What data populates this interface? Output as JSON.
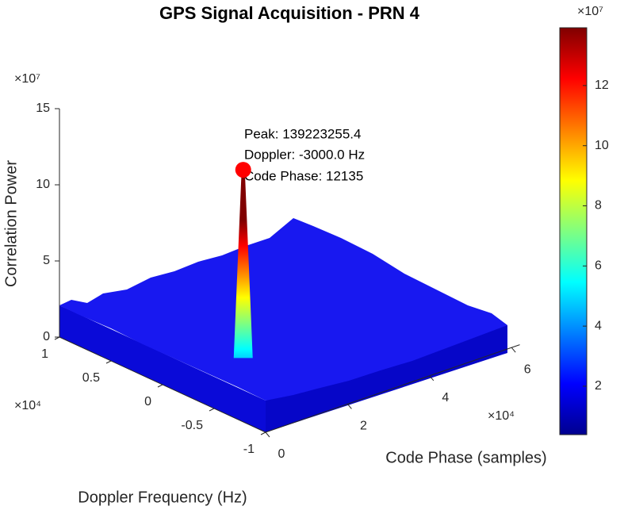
{
  "chart_data": {
    "type": "surface",
    "title": "GPS Signal Acquisition - PRN 4",
    "xlabel": "Code Phase (samples)",
    "ylabel": "Doppler Frequency (Hz)",
    "zlabel": "Correlation Power",
    "colormap": "jet",
    "xlim": [
      0,
      62000
    ],
    "ylim": [
      -10000,
      10000
    ],
    "zlim": [
      0,
      150000000
    ],
    "clim": [
      3900000,
      139223255.4
    ],
    "xticks": [
      {
        "value": 0,
        "label": "0"
      },
      {
        "value": 20000,
        "label": "2"
      },
      {
        "value": 40000,
        "label": "4"
      },
      {
        "value": 60000,
        "label": "6"
      }
    ],
    "yticks": [
      {
        "value": -10000,
        "label": "-1"
      },
      {
        "value": -5000,
        "label": "-0.5"
      },
      {
        "value": 0,
        "label": "0"
      },
      {
        "value": 5000,
        "label": "0.5"
      },
      {
        "value": 10000,
        "label": "1"
      }
    ],
    "zticks": [
      {
        "value": 0,
        "label": "0"
      },
      {
        "value": 50000000,
        "label": "5"
      },
      {
        "value": 100000000,
        "label": "10"
      },
      {
        "value": 150000000,
        "label": "15"
      }
    ],
    "cticks": [
      {
        "value": 20000000,
        "label": "2"
      },
      {
        "value": 40000000,
        "label": "4"
      },
      {
        "value": 60000000,
        "label": "6"
      },
      {
        "value": 80000000,
        "label": "8"
      },
      {
        "value": 100000000,
        "label": "10"
      },
      {
        "value": 120000000,
        "label": "12"
      }
    ],
    "x_exponent": "×10⁴",
    "y_exponent": "×10⁴",
    "z_exponent": "×10⁷",
    "c_exponent": "×10⁷",
    "peak": {
      "x": 12135,
      "y": -3000,
      "z": 139223255.4,
      "color": "#ff0000"
    },
    "annotation": [
      "Peak: 139223255.4",
      "Doppler: -3000.0 Hz",
      "Code Phase: 12135"
    ]
  }
}
